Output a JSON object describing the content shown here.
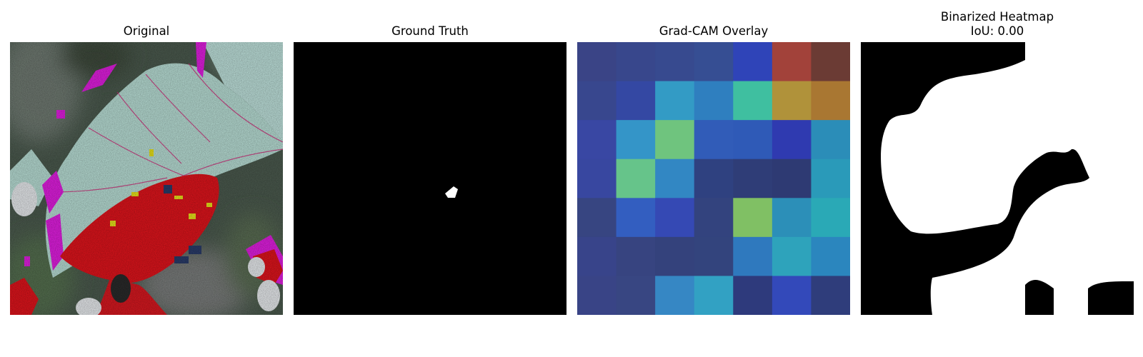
{
  "panels": {
    "original": {
      "title": "Original"
    },
    "ground_truth": {
      "title": "Ground Truth"
    },
    "gradcam": {
      "title": "Grad-CAM Overlay",
      "grid": [
        [
          "#3a4486",
          "#38478c",
          "#374a8f",
          "#364e93",
          "#2f44b8",
          "#a2423a",
          "#6b3b34"
        ],
        [
          "#38478e",
          "#3448a3",
          "#339bc5",
          "#2f7fbf",
          "#3fbfa0",
          "#b0923a",
          "#a97732"
        ],
        [
          "#3947a3",
          "#3495c8",
          "#6fc47e",
          "#315cb8",
          "#2f5ab7",
          "#2f3ab0",
          "#2b8db8"
        ],
        [
          "#3847a0",
          "#66c48a",
          "#3287c3",
          "#2f4180",
          "#2f3d77",
          "#2e3a73",
          "#2a9ab9"
        ],
        [
          "#374581",
          "#335ec0",
          "#3549b4",
          "#33437e",
          "#80c064",
          "#2c8fb8",
          "#2aa9b6"
        ],
        [
          "#38448a",
          "#374480",
          "#34427c",
          "#33447d",
          "#2f79be",
          "#2ea3bb",
          "#2b86be"
        ],
        [
          "#394486",
          "#384682",
          "#3687c4",
          "#32a1c3",
          "#2e3a7c",
          "#3349ba",
          "#2f3d7b"
        ]
      ]
    },
    "binarized": {
      "title_line1": "Binarized Heatmap",
      "title_line2": "IoU: 0.00"
    }
  }
}
